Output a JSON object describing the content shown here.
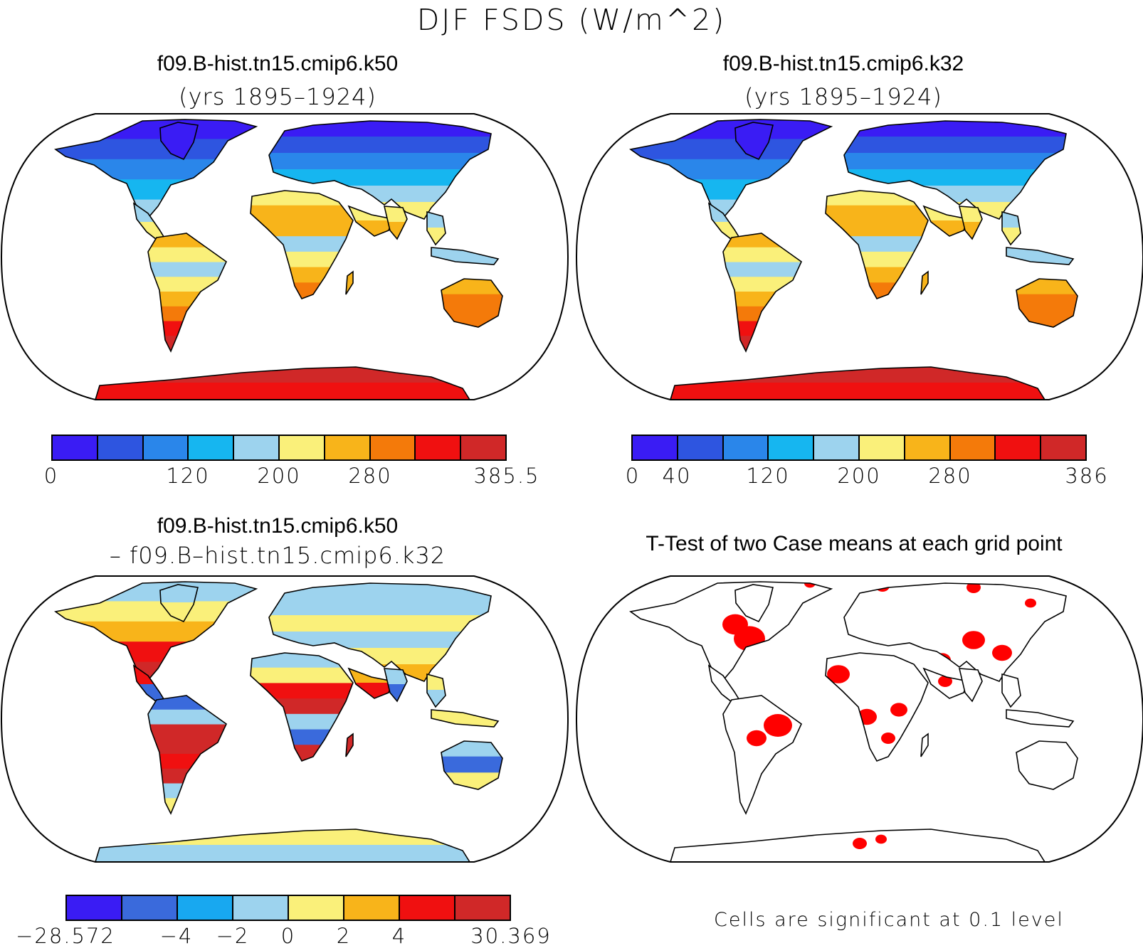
{
  "figure": {
    "title": "DJF FSDS (W/m^2)"
  },
  "panels": [
    {
      "id": "case1",
      "title_line1": "f09.B-hist.tn15.cmip6.k50",
      "title_line2": "(yrs 1895–1924)"
    },
    {
      "id": "case2",
      "title_line1": "f09.B-hist.tn15.cmip6.k32",
      "title_line2": "(yrs 1895–1924)"
    },
    {
      "id": "diff",
      "title_line1": "f09.B-hist.tn15.cmip6.k50",
      "title_line2": "– f09.B–hist.tn15.cmip6.k32"
    },
    {
      "id": "ttest",
      "title_line1": "T-Test of two Case means at each grid point",
      "note": "Cells are significant at 0.1 level"
    }
  ],
  "colorbars": [
    {
      "colors": [
        "#3a1cf4",
        "#2e55e0",
        "#2a86ea",
        "#16b6f0",
        "#9dd3ee",
        "#faf07a",
        "#f8b41a",
        "#f47a0a",
        "#f01010",
        "#d02828"
      ],
      "ticks": [
        "0",
        "120",
        "200",
        "280",
        "385.5"
      ]
    },
    {
      "colors": [
        "#3a1cf4",
        "#2e55e0",
        "#2a86ea",
        "#16b6f0",
        "#9dd3ee",
        "#faf07a",
        "#f8b41a",
        "#f47a0a",
        "#f01010",
        "#d02828"
      ],
      "ticks": [
        "0",
        "40",
        "120",
        "200",
        "280",
        "386"
      ]
    },
    {
      "colors": [
        "#3a1cf4",
        "#3a6adc",
        "#18a8f0",
        "#9dd3ee",
        "#faf07a",
        "#f8b41a",
        "#f01010",
        "#d02828"
      ],
      "ticks": [
        "−28.572",
        "−4",
        "−2",
        "0",
        "2",
        "4",
        "30.369"
      ]
    }
  ],
  "significance_color": "#ff0000"
}
